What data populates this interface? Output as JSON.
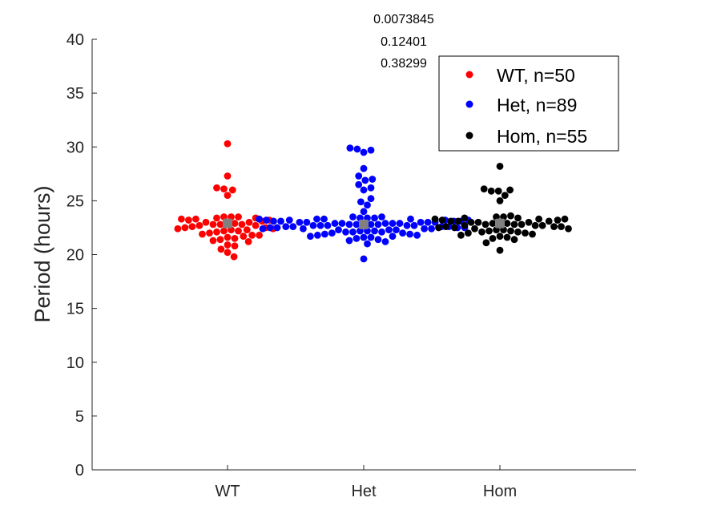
{
  "chart_data": {
    "type": "scatter",
    "subtype": "beeswarm",
    "ylabel": "Period (hours)",
    "ylim": [
      0,
      40
    ],
    "yticks": [
      0,
      5,
      10,
      15,
      20,
      25,
      30,
      35,
      40
    ],
    "categories": [
      "WT",
      "Het",
      "Hom"
    ],
    "annotations": [
      "0.0073845",
      "0.12401",
      "0.38299"
    ],
    "legend": {
      "placement": "top-right",
      "entries": [
        "WT, n=50",
        "Het, n=89",
        "Hom, n=55"
      ]
    },
    "mean_marker_color": "#808080",
    "series": [
      {
        "category": "WT",
        "color": "#ff0000",
        "mean": 22.9,
        "values": [
          30.3,
          27.3,
          26.2,
          26.1,
          26.0,
          25.5,
          23.5,
          23.5,
          23.5,
          23.4,
          23.4,
          23.3,
          23.3,
          23.2,
          23.2,
          23.1,
          23.0,
          23.0,
          22.9,
          22.9,
          22.8,
          22.8,
          22.8,
          22.7,
          22.7,
          22.6,
          22.5,
          22.5,
          22.4,
          22.4,
          22.3,
          22.3,
          22.2,
          22.2,
          22.1,
          22.0,
          21.9,
          21.8,
          21.8,
          21.7,
          21.6,
          21.5,
          21.4,
          21.3,
          21.2,
          20.9,
          20.8,
          20.5,
          20.2,
          19.8
        ]
      },
      {
        "category": "Het",
        "color": "#0000ff",
        "mean": 22.8,
        "values": [
          29.9,
          29.8,
          29.7,
          29.5,
          28.0,
          27.3,
          27.0,
          26.9,
          26.5,
          26.2,
          26.0,
          25.2,
          24.9,
          24.6,
          24.0,
          23.5,
          23.5,
          23.4,
          23.4,
          23.4,
          23.3,
          23.3,
          23.3,
          23.3,
          23.2,
          23.2,
          23.2,
          23.2,
          23.1,
          23.1,
          23.1,
          23.1,
          23.0,
          23.0,
          23.0,
          23.0,
          23.0,
          22.9,
          22.9,
          22.9,
          22.9,
          22.9,
          22.8,
          22.8,
          22.8,
          22.8,
          22.8,
          22.7,
          22.7,
          22.7,
          22.7,
          22.7,
          22.6,
          22.6,
          22.6,
          22.6,
          22.5,
          22.5,
          22.5,
          22.5,
          22.4,
          22.4,
          22.4,
          22.4,
          22.3,
          22.3,
          22.3,
          22.2,
          22.2,
          22.2,
          22.1,
          22.1,
          22.1,
          22.0,
          22.0,
          21.9,
          21.9,
          21.8,
          21.8,
          21.7,
          21.7,
          21.6,
          21.6,
          21.5,
          21.4,
          21.3,
          21.2,
          21.0,
          19.6
        ]
      },
      {
        "category": "Hom",
        "color": "#000000",
        "mean": 22.9,
        "values": [
          28.2,
          26.1,
          26.0,
          25.9,
          25.9,
          25.5,
          25.0,
          23.6,
          23.5,
          23.5,
          23.4,
          23.4,
          23.3,
          23.3,
          23.3,
          23.2,
          23.2,
          23.1,
          23.1,
          23.1,
          23.0,
          23.0,
          23.0,
          22.9,
          22.9,
          22.9,
          22.8,
          22.8,
          22.8,
          22.7,
          22.7,
          22.7,
          22.6,
          22.6,
          22.6,
          22.5,
          22.5,
          22.4,
          22.4,
          22.3,
          22.3,
          22.2,
          22.2,
          22.1,
          22.1,
          22.0,
          22.0,
          21.9,
          21.8,
          21.7,
          21.6,
          21.5,
          21.4,
          21.1,
          20.4
        ]
      }
    ]
  }
}
